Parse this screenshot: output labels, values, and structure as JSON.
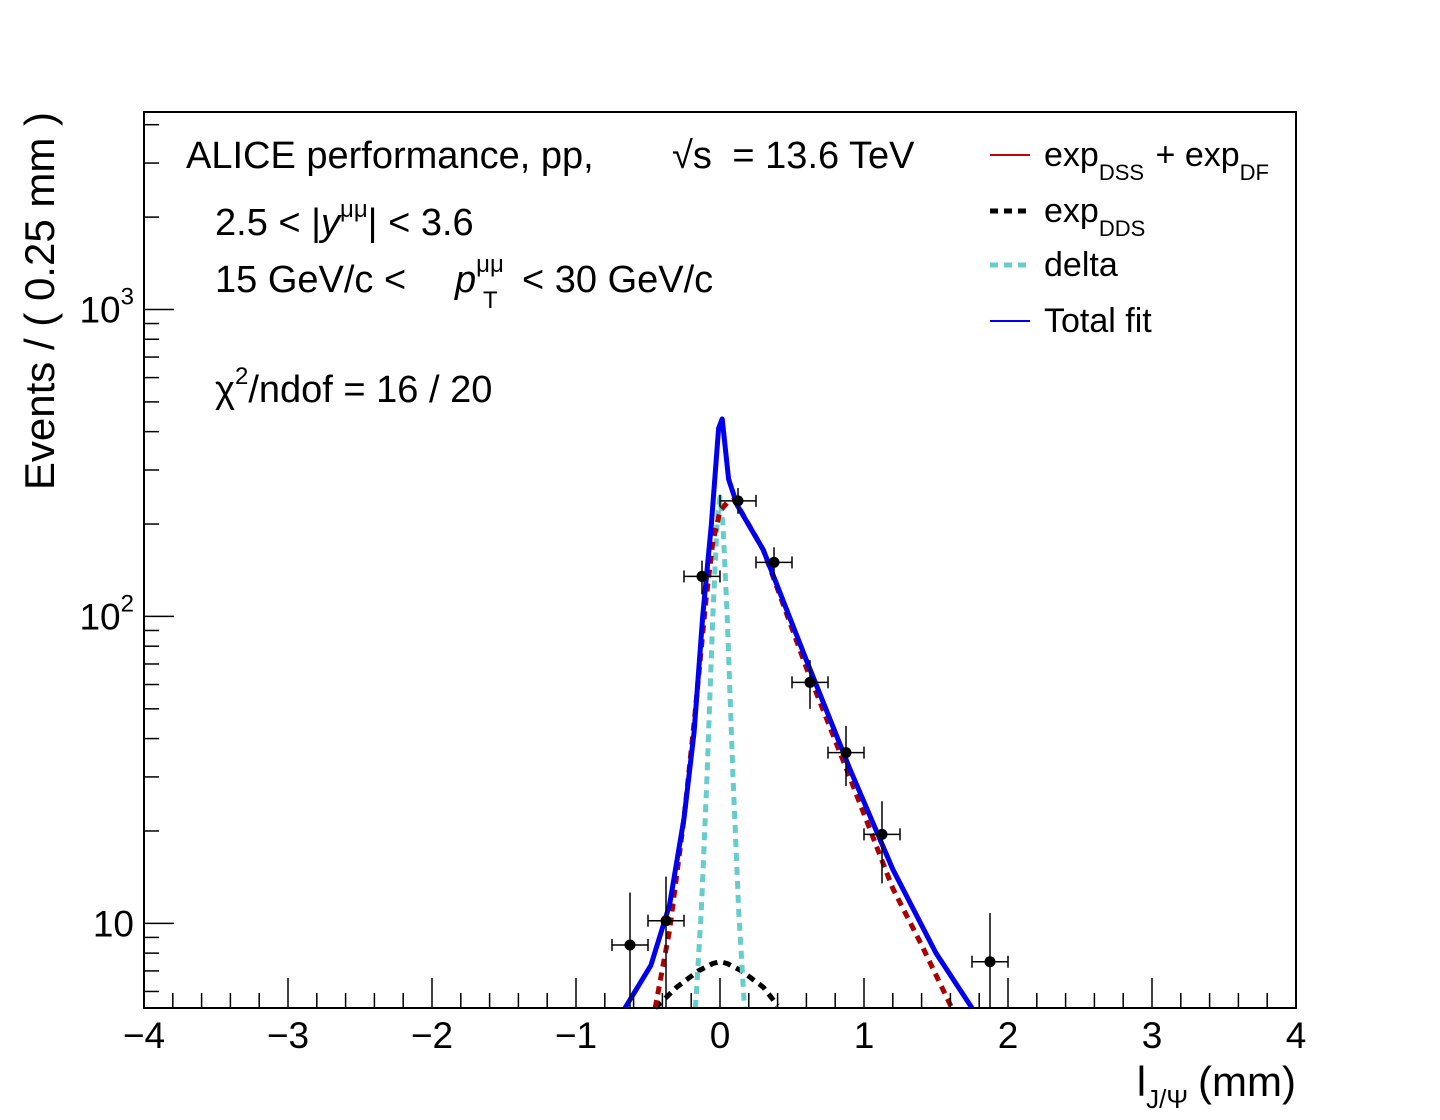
{
  "chart_data": {
    "type": "scatter",
    "title": "",
    "xlabel": "l",
    "xlabel_sub": "J/Ψ",
    "xlabel_unit": "(mm)",
    "ylabel": "Events / ( 0.25 mm )",
    "xlim": [
      -4,
      4
    ],
    "ylim": [
      5.3,
      4400
    ],
    "y_scale": "log",
    "grid": false,
    "legend_position": "top-right",
    "x_ticks": [
      "−4",
      "−3",
      "−2",
      "−1",
      "0",
      "1",
      "2",
      "3",
      "4"
    ],
    "y_ticks": [
      {
        "base": "10",
        "exp": "",
        "value": 10
      },
      {
        "base": "10",
        "exp": "2",
        "value": 100
      },
      {
        "base": "10",
        "exp": "3",
        "value": 1000
      }
    ],
    "annotations": {
      "line1_prefix": "ALICE performance, pp,",
      "line1_sqrt": "√s",
      "line1_energy": "= 13.6 TeV",
      "line2_a": "2.5 < |",
      "line2_y": "y",
      "line2_sup": "μμ",
      "line2_b": "| < 3.6",
      "line3_a": "15 GeV/c <",
      "line3_p": "p",
      "line3_sup": "μμ",
      "line3_sub": "T",
      "line3_b": "< 30 GeV/c",
      "chi_symbol": "χ",
      "chi_sup": "2",
      "chi_rest": "/ndof = 16 / 20"
    },
    "legend": [
      {
        "key": "dss_df",
        "base": "exp",
        "sub": "DSS",
        "mid": " + exp",
        "sub2": "DF",
        "color": "#cc0000",
        "style": "solid-thin"
      },
      {
        "key": "dds",
        "base": "exp",
        "sub": "DDS",
        "mid": "",
        "sub2": "",
        "color": "#000000",
        "style": "dashed"
      },
      {
        "key": "delta",
        "base": "delta",
        "sub": "",
        "mid": "",
        "sub2": "",
        "color": "#66cccc",
        "style": "dashed"
      },
      {
        "key": "total",
        "base": "Total fit",
        "sub": "",
        "mid": "",
        "sub2": "",
        "color": "#0000ee",
        "style": "solid-thin"
      }
    ],
    "data_points": [
      {
        "x": -0.625,
        "y": 8.5,
        "xerr": 0.125,
        "ylo": 5.3,
        "yhi": 12.6
      },
      {
        "x": -0.375,
        "y": 10.2,
        "xerr": 0.125,
        "ylo": 5.3,
        "yhi": 14.2
      },
      {
        "x": -0.125,
        "y": 135,
        "xerr": 0.125,
        "ylo": 118,
        "yhi": 152
      },
      {
        "x": 0.125,
        "y": 238,
        "xerr": 0.125,
        "ylo": 216,
        "yhi": 262
      },
      {
        "x": 0.375,
        "y": 150,
        "xerr": 0.125,
        "ylo": 133,
        "yhi": 168
      },
      {
        "x": 0.625,
        "y": 61,
        "xerr": 0.125,
        "ylo": 50,
        "yhi": 72
      },
      {
        "x": 0.875,
        "y": 36,
        "xerr": 0.125,
        "ylo": 28,
        "yhi": 44
      },
      {
        "x": 1.125,
        "y": 19.5,
        "xerr": 0.125,
        "ylo": 13.5,
        "yhi": 25
      },
      {
        "x": 1.875,
        "y": 7.5,
        "xerr": 0.125,
        "ylo": 5.3,
        "yhi": 10.8
      }
    ],
    "series": [
      {
        "key": "total",
        "color": "#0000ee",
        "style": "solid",
        "x": [
          -0.66,
          -0.48,
          -0.35,
          -0.25,
          -0.18,
          -0.12,
          -0.06,
          -0.01,
          0.015,
          0.06,
          0.12,
          0.3,
          0.6,
          0.9,
          1.2,
          1.5,
          1.75
        ],
        "y": [
          5.3,
          7.3,
          11.5,
          22,
          42,
          100,
          200,
          410,
          440,
          280,
          230,
          165,
          72,
          32,
          15,
          8,
          5.3
        ]
      },
      {
        "key": "dss_df",
        "color": "#aa0000",
        "style": "dotted",
        "x": [
          -0.45,
          -0.35,
          -0.25,
          -0.18,
          -0.1,
          -0.05,
          0.0,
          0.05,
          0.1,
          0.3,
          0.6,
          0.9,
          1.2,
          1.4,
          1.61
        ],
        "y": [
          5.3,
          9.5,
          22,
          45,
          110,
          175,
          220,
          235,
          240,
          165,
          68,
          30,
          13,
          8.5,
          5.3
        ]
      },
      {
        "key": "delta",
        "color": "#66cccc",
        "style": "dotted",
        "x": [
          -0.17,
          -0.13,
          -0.09,
          -0.05,
          -0.02,
          0.0,
          0.02,
          0.05,
          0.09,
          0.13,
          0.17
        ],
        "y": [
          5.3,
          11,
          30,
          100,
          200,
          245,
          200,
          100,
          30,
          11,
          5.3
        ]
      },
      {
        "key": "dds",
        "color": "#000000",
        "style": "dotted",
        "x": [
          -0.45,
          -0.3,
          -0.15,
          -0.05,
          0.0,
          0.05,
          0.15,
          0.3,
          0.4
        ],
        "y": [
          5.3,
          6.2,
          7.0,
          7.4,
          7.5,
          7.4,
          7.0,
          6.2,
          5.4
        ]
      }
    ]
  }
}
